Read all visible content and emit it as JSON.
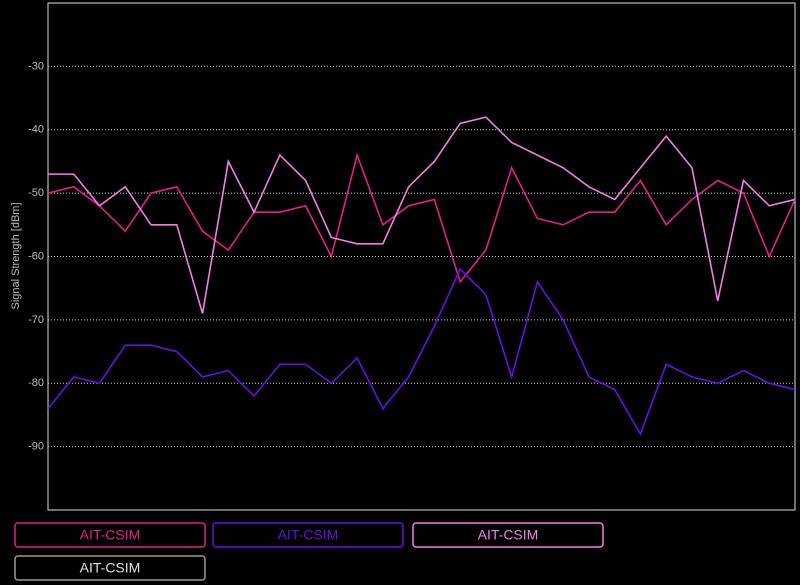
{
  "chart_data": {
    "type": "line",
    "ylabel": "Signal Strength [dBm]",
    "ylim": [
      -100,
      -20
    ],
    "yticks": [
      -90,
      -80,
      -70,
      -60,
      -50,
      -40,
      -30
    ],
    "grid": true,
    "series": [
      {
        "name": "AIT-CSIM",
        "color": "#e0208c",
        "values": [
          -50,
          -49,
          -52,
          -56,
          -50,
          -49,
          -56,
          -59,
          -53,
          -53,
          -52,
          -60,
          -44,
          -55,
          -52,
          -51,
          -64,
          -59,
          -46,
          -54,
          -55,
          -53,
          -53,
          -48,
          -55,
          -51,
          -48,
          -50,
          -60,
          -51
        ]
      },
      {
        "name": "AIT-CSIM",
        "color": "#6a10e0",
        "values": [
          -84,
          -79,
          -80,
          -74,
          -74,
          -75,
          -79,
          -78,
          -82,
          -77,
          -77,
          -80,
          -76,
          -84,
          -79,
          -71,
          -62,
          -66,
          -79,
          -64,
          -70,
          -79,
          -81,
          -88,
          -77,
          -79,
          -80,
          -78,
          -80,
          -81
        ]
      },
      {
        "name": "AIT-CSIM",
        "color": "#f080e6",
        "values": [
          -47,
          -47,
          -52,
          -49,
          -55,
          -55,
          -69,
          -45,
          -53,
          -44,
          -48,
          -57,
          -58,
          -58,
          -49,
          -45,
          -39,
          -38,
          -42,
          -44,
          -46,
          -49,
          -51,
          -46,
          -41,
          -46,
          -67,
          -48,
          -52,
          -51
        ]
      },
      {
        "name": "AIT-CSIM",
        "color": "#9a9a9a",
        "values": [
          null,
          null,
          null,
          null,
          null,
          null,
          null,
          null,
          null,
          null,
          null,
          null,
          null,
          null,
          null,
          null,
          null,
          null,
          null,
          null,
          null,
          null,
          null,
          null,
          null,
          null,
          null,
          null,
          null,
          null
        ]
      }
    ]
  }
}
